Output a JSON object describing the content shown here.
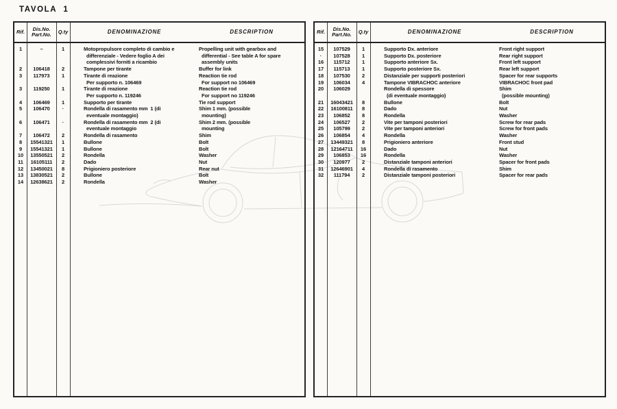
{
  "page": {
    "title": "TAVOLA  1"
  },
  "colors": {
    "paper": "#fbfaf7",
    "ink": "#151515",
    "table_line": "#222222",
    "watermark_line": "#d5d5d5"
  },
  "watermark": {
    "name": "car-side-outline",
    "description": "faint line drawing of sports car, side view facing left"
  },
  "tables": [
    {
      "headers": {
        "rif": "Rif.",
        "part_line1": "Dis.No.",
        "part_line2": "Part.No.",
        "qty": "Q.ty",
        "den": "DENOMINAZIONE",
        "desc": "DESCRIPTION"
      },
      "entries": [
        {
          "rif": "1",
          "part": "–",
          "qty": "1",
          "den": [
            "Motopropulsore completo di cambio e",
            "  differenziale - Vedere foglio A dei",
            "  complessivi forniti a ricambio"
          ],
          "desc": [
            "Propelling unit with gearbox and",
            "  differential - See table A for spare",
            "  assembly units"
          ]
        },
        {
          "rif": "2",
          "part": "106418",
          "qty": "2",
          "den": [
            "Tampone per tirante"
          ],
          "desc": [
            "Buffer for link"
          ]
        },
        {
          "rif": "3",
          "part": "117973",
          "qty": "1",
          "den": [
            "Tirante di reazione",
            "  Per supporto n. 106469"
          ],
          "desc": [
            "Reaction tie rod",
            "  For support no 106469"
          ]
        },
        {
          "rif": "3",
          "part": "119250",
          "qty": "1",
          "den": [
            "Tirante di reazione",
            "  Per supporto n. 119246"
          ],
          "desc": [
            "Reaction tie rod",
            "  For support no 119246"
          ]
        },
        {
          "rif": "4",
          "part": "106469",
          "qty": "1",
          "den": [
            "Supporto per tirante"
          ],
          "desc": [
            "Tie rod support"
          ]
        },
        {
          "rif": "5",
          "part": "106470",
          "qty": "·",
          "den": [
            "Rondella di rasamento mm  1 (di",
            "  eventuale montaggio)"
          ],
          "desc": [
            "Shim 1 mm. (possible",
            "  mounting)"
          ]
        },
        {
          "rif": "6",
          "part": "106471",
          "qty": "·",
          "den": [
            "Rondella di rasamento mm  2 (di",
            "  eventuale montaggio"
          ],
          "desc": [
            "Shim 2 mm. (possible",
            "  mounting"
          ]
        },
        {
          "rif": "7",
          "part": "106472",
          "qty": "2",
          "den": [
            "Rondella di rasamento"
          ],
          "desc": [
            "Shim"
          ]
        },
        {
          "rif": "8",
          "part": "15541321",
          "qty": "1",
          "den": [
            "Bullone"
          ],
          "desc": [
            "Bolt"
          ]
        },
        {
          "rif": "9",
          "part": "15541321",
          "qty": "1",
          "den": [
            "Bullone"
          ],
          "desc": [
            "Bolt"
          ]
        },
        {
          "rif": "10",
          "part": "13550521",
          "qty": "2",
          "den": [
            "Rondella"
          ],
          "desc": [
            "Washer"
          ]
        },
        {
          "rif": "11",
          "part": "16105111",
          "qty": "2",
          "den": [
            "Dado"
          ],
          "desc": [
            "Nut"
          ]
        },
        {
          "rif": "12",
          "part": "13450021",
          "qty": "8",
          "den": [
            "Prigioniero posteriore"
          ],
          "desc": [
            "Rear nut"
          ]
        },
        {
          "rif": "13",
          "part": "13830521",
          "qty": "2",
          "den": [
            "Bullone"
          ],
          "desc": [
            "Bolt"
          ]
        },
        {
          "rif": "14",
          "part": "12638621",
          "qty": "2",
          "den": [
            "Rondella"
          ],
          "desc": [
            "Washer"
          ]
        }
      ]
    },
    {
      "headers": {
        "rif": "Rif.",
        "part_line1": "Dis.No.",
        "part_line2": "Part.No.",
        "qty": "Q.ty",
        "den": "DENOMINAZIONE",
        "desc": "DESCRIPTION"
      },
      "entries": [
        {
          "rif": "15",
          "part": "107529",
          "qty": "1",
          "den": [
            "Supporto Dx. anteriore"
          ],
          "desc": [
            "Front right support"
          ]
        },
        {
          "rif": "·",
          "part": "107528",
          "qty": "1",
          "den": [
            "Supporto Dx. posteriore"
          ],
          "desc": [
            "Rear right support"
          ]
        },
        {
          "rif": "16",
          "part": "115712",
          "qty": "1",
          "den": [
            "Supporto anteriore Sx."
          ],
          "desc": [
            "Front left support"
          ]
        },
        {
          "rif": "17",
          "part": "115713",
          "qty": "1",
          "den": [
            "Supporto posteriore Sx."
          ],
          "desc": [
            "Rear left support"
          ]
        },
        {
          "rif": "18",
          "part": "107530",
          "qty": "2",
          "den": [
            "Distanziale per supporti posteriori"
          ],
          "desc": [
            "Spacer for rear supports"
          ]
        },
        {
          "rif": "19",
          "part": "106034",
          "qty": "4",
          "den": [
            "Tampone VIBRACHOC anteriore"
          ],
          "desc": [
            "VIBRACHOC front pad"
          ]
        },
        {
          "rif": "20",
          "part": "106029",
          "qty": "",
          "den": [
            "Rondella di spessore",
            "  (di eventuale montaggio)"
          ],
          "desc": [
            "Shim",
            "  (possible mounting)"
          ]
        },
        {
          "rif": "21",
          "part": "16043421",
          "qty": "8",
          "den": [
            "Bullone"
          ],
          "desc": [
            "Bolt"
          ]
        },
        {
          "rif": "22",
          "part": "16100811",
          "qty": "8",
          "den": [
            "Dado"
          ],
          "desc": [
            "Nut"
          ]
        },
        {
          "rif": "23",
          "part": "106852",
          "qty": "8",
          "den": [
            "Rondella"
          ],
          "desc": [
            "Washer"
          ]
        },
        {
          "rif": "24",
          "part": "106527",
          "qty": "2",
          "den": [
            "Vite per tamponi posteriori"
          ],
          "desc": [
            "Screw for rear pads"
          ]
        },
        {
          "rif": "25",
          "part": "105799",
          "qty": "2",
          "den": [
            "Vite per tamponi anteriori"
          ],
          "desc": [
            "Screw for front pads"
          ]
        },
        {
          "rif": "26",
          "part": "106854",
          "qty": "4",
          "den": [
            "Rondella"
          ],
          "desc": [
            "Washer"
          ]
        },
        {
          "rif": "27",
          "part": "13449321",
          "qty": "8",
          "den": [
            "Prigioniero anteriore"
          ],
          "desc": [
            "Front stud"
          ]
        },
        {
          "rif": "28",
          "part": "12164711",
          "qty": "16",
          "den": [
            "Dado"
          ],
          "desc": [
            "Nut"
          ]
        },
        {
          "rif": "29",
          "part": "106853",
          "qty": "16",
          "den": [
            "Rondella"
          ],
          "desc": [
            "Washer"
          ]
        },
        {
          "rif": "30",
          "part": "120977",
          "qty": "2",
          "den": [
            "Distanziale tamponi anteriori"
          ],
          "desc": [
            "Spacer for front pads"
          ]
        },
        {
          "rif": "31",
          "part": "12646901",
          "qty": "4",
          "den": [
            "Rondella di rasamento"
          ],
          "desc": [
            "Shim"
          ]
        },
        {
          "rif": "32",
          "part": "111794",
          "qty": "2",
          "den": [
            "Distanziale tamponi posteriori"
          ],
          "desc": [
            "Spacer for rear pads"
          ]
        }
      ]
    }
  ]
}
